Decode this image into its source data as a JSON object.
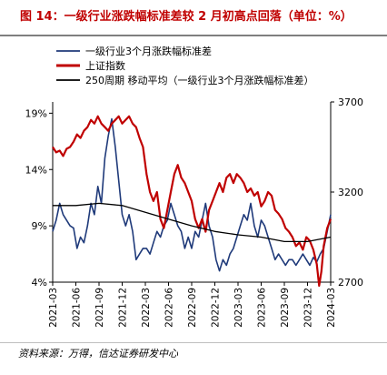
{
  "header": {
    "title": "图 14：一级行业涨跌幅标准差较 2 月初高点回落（单位：%）"
  },
  "footer": {
    "source": "资料来源：万得，信达证券研发中心"
  },
  "chart_data": {
    "type": "line",
    "x_start": "2021-03",
    "x_end": "2024-03",
    "x_tick_labels": [
      "2021-03",
      "2021-06",
      "2021-09",
      "2021-12",
      "2022-03",
      "2022-06",
      "2022-09",
      "2022-12",
      "2023-03",
      "2023-06",
      "2023-09",
      "2023-12",
      "2024-03"
    ],
    "y_left": {
      "ticks": [
        "4%",
        "9%",
        "14%",
        "19%"
      ],
      "range": [
        4,
        20
      ],
      "unit": "%"
    },
    "y_right": {
      "ticks": [
        "2700",
        "3200",
        "3700"
      ],
      "range": [
        2700,
        3700
      ]
    },
    "legend_position": "top",
    "series": [
      {
        "name": "一级行业3个月涨跌幅标准差",
        "color": "#1f3a7a",
        "axis": "left",
        "points": [
          [
            0,
            8.5
          ],
          [
            0.15,
            9.5
          ],
          [
            0.3,
            11
          ],
          [
            0.45,
            10
          ],
          [
            0.6,
            9.5
          ],
          [
            0.75,
            9
          ],
          [
            0.9,
            8.8
          ],
          [
            1.05,
            7
          ],
          [
            1.2,
            8
          ],
          [
            1.35,
            7.5
          ],
          [
            1.5,
            9
          ],
          [
            1.65,
            11
          ],
          [
            1.8,
            10
          ],
          [
            1.95,
            12.5
          ],
          [
            2.1,
            11
          ],
          [
            2.25,
            15
          ],
          [
            2.4,
            17
          ],
          [
            2.55,
            18.5
          ],
          [
            2.7,
            16
          ],
          [
            2.85,
            13
          ],
          [
            3.0,
            10
          ],
          [
            3.15,
            9
          ],
          [
            3.3,
            10
          ],
          [
            3.45,
            8.5
          ],
          [
            3.6,
            6
          ],
          [
            3.75,
            6.5
          ],
          [
            3.9,
            7
          ],
          [
            4.05,
            7
          ],
          [
            4.2,
            6.5
          ],
          [
            4.35,
            7.5
          ],
          [
            4.5,
            8.5
          ],
          [
            4.65,
            8
          ],
          [
            4.8,
            9
          ],
          [
            4.95,
            9.5
          ],
          [
            5.1,
            11
          ],
          [
            5.25,
            10
          ],
          [
            5.4,
            9
          ],
          [
            5.55,
            8.5
          ],
          [
            5.7,
            7
          ],
          [
            5.85,
            8
          ],
          [
            6.0,
            7
          ],
          [
            6.15,
            8.5
          ],
          [
            6.3,
            8
          ],
          [
            6.45,
            9.5
          ],
          [
            6.6,
            11
          ],
          [
            6.75,
            9
          ],
          [
            6.9,
            8
          ],
          [
            7.05,
            6
          ],
          [
            7.2,
            5
          ],
          [
            7.35,
            6
          ],
          [
            7.5,
            5.5
          ],
          [
            7.65,
            6.5
          ],
          [
            7.8,
            7
          ],
          [
            7.95,
            8
          ],
          [
            8.1,
            9
          ],
          [
            8.25,
            10
          ],
          [
            8.4,
            9.5
          ],
          [
            8.55,
            11
          ],
          [
            8.7,
            9
          ],
          [
            8.85,
            8
          ],
          [
            9.0,
            9.5
          ],
          [
            9.15,
            9
          ],
          [
            9.3,
            8
          ],
          [
            9.45,
            7
          ],
          [
            9.6,
            6
          ],
          [
            9.75,
            6.5
          ],
          [
            9.9,
            6
          ],
          [
            10.05,
            5.5
          ],
          [
            10.2,
            6
          ],
          [
            10.35,
            6
          ],
          [
            10.5,
            5.5
          ],
          [
            10.65,
            6
          ],
          [
            10.8,
            6.5
          ],
          [
            10.95,
            6
          ],
          [
            11.1,
            5.5
          ],
          [
            11.25,
            6.2
          ],
          [
            11.4,
            5.8
          ],
          [
            11.55,
            6.5
          ],
          [
            11.7,
            7
          ],
          [
            11.85,
            8.5
          ],
          [
            12.0,
            10
          ]
        ]
      },
      {
        "name": "上证指数",
        "color": "#c00000",
        "axis": "right",
        "points": [
          [
            0,
            3450
          ],
          [
            0.15,
            3420
          ],
          [
            0.3,
            3430
          ],
          [
            0.45,
            3400
          ],
          [
            0.6,
            3440
          ],
          [
            0.75,
            3450
          ],
          [
            0.9,
            3480
          ],
          [
            1.05,
            3520
          ],
          [
            1.2,
            3500
          ],
          [
            1.35,
            3540
          ],
          [
            1.5,
            3560
          ],
          [
            1.65,
            3600
          ],
          [
            1.8,
            3580
          ],
          [
            1.95,
            3620
          ],
          [
            2.1,
            3580
          ],
          [
            2.25,
            3560
          ],
          [
            2.4,
            3540
          ],
          [
            2.55,
            3580
          ],
          [
            2.7,
            3600
          ],
          [
            2.85,
            3620
          ],
          [
            3.0,
            3580
          ],
          [
            3.15,
            3600
          ],
          [
            3.3,
            3620
          ],
          [
            3.45,
            3580
          ],
          [
            3.6,
            3560
          ],
          [
            3.75,
            3500
          ],
          [
            3.9,
            3450
          ],
          [
            4.05,
            3300
          ],
          [
            4.2,
            3200
          ],
          [
            4.35,
            3150
          ],
          [
            4.5,
            3200
          ],
          [
            4.65,
            3050
          ],
          [
            4.8,
            3000
          ],
          [
            4.95,
            3100
          ],
          [
            5.1,
            3200
          ],
          [
            5.25,
            3300
          ],
          [
            5.4,
            3350
          ],
          [
            5.55,
            3280
          ],
          [
            5.7,
            3250
          ],
          [
            5.85,
            3200
          ],
          [
            6.0,
            3150
          ],
          [
            6.15,
            3050
          ],
          [
            6.3,
            3000
          ],
          [
            6.45,
            3050
          ],
          [
            6.6,
            2980
          ],
          [
            6.75,
            3100
          ],
          [
            6.9,
            3150
          ],
          [
            7.05,
            3200
          ],
          [
            7.2,
            3250
          ],
          [
            7.35,
            3200
          ],
          [
            7.5,
            3280
          ],
          [
            7.65,
            3300
          ],
          [
            7.8,
            3250
          ],
          [
            7.95,
            3300
          ],
          [
            8.1,
            3280
          ],
          [
            8.25,
            3250
          ],
          [
            8.4,
            3200
          ],
          [
            8.55,
            3220
          ],
          [
            8.7,
            3180
          ],
          [
            8.85,
            3200
          ],
          [
            9.0,
            3120
          ],
          [
            9.15,
            3150
          ],
          [
            9.3,
            3200
          ],
          [
            9.45,
            3180
          ],
          [
            9.6,
            3100
          ],
          [
            9.75,
            3080
          ],
          [
            9.9,
            3050
          ],
          [
            10.05,
            3000
          ],
          [
            10.2,
            2980
          ],
          [
            10.35,
            2950
          ],
          [
            10.5,
            2900
          ],
          [
            10.65,
            2920
          ],
          [
            10.8,
            2880
          ],
          [
            10.95,
            2950
          ],
          [
            11.1,
            2930
          ],
          [
            11.25,
            2880
          ],
          [
            11.4,
            2800
          ],
          [
            11.5,
            2680
          ],
          [
            11.6,
            2760
          ],
          [
            11.7,
            2900
          ],
          [
            11.85,
            3000
          ],
          [
            12.0,
            3050
          ]
        ]
      },
      {
        "name": "250周期 移动平均（一级行业3个月涨跌幅标准差）",
        "color": "#000000",
        "axis": "left",
        "points": [
          [
            0,
            10.8
          ],
          [
            1,
            10.8
          ],
          [
            2,
            11
          ],
          [
            3,
            10.8
          ],
          [
            4,
            10.2
          ],
          [
            5,
            9.6
          ],
          [
            6,
            9
          ],
          [
            7,
            8.5
          ],
          [
            8,
            8.2
          ],
          [
            9,
            8.0
          ],
          [
            10,
            7.6
          ],
          [
            11,
            7.6
          ],
          [
            12,
            8
          ]
        ]
      }
    ]
  }
}
